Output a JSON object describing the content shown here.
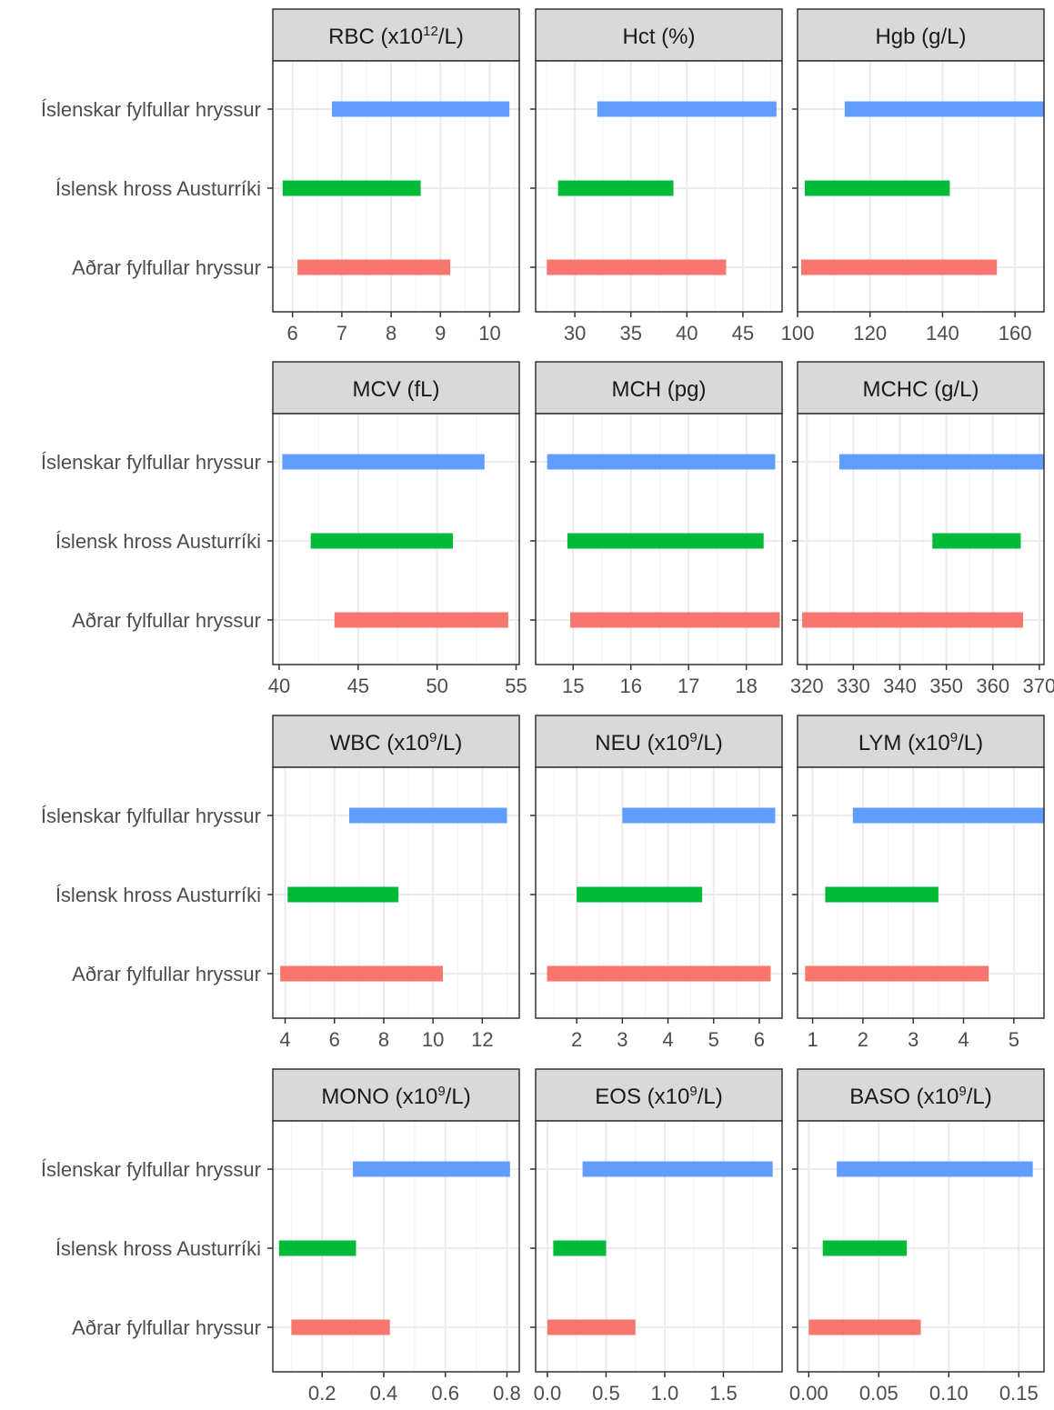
{
  "colors": {
    "islenskar": "#619CFF",
    "austurriki": "#00BA38",
    "adrar": "#F8766D",
    "strip_bg": "#D9D9D9",
    "panel_border": "#333333",
    "grid": "#EBEBEB"
  },
  "categories": [
    "Íslenskar fylfullar hryssur",
    "Íslensk hross Austurríki",
    "Aðrar fylfullar hryssur"
  ],
  "chart_data": [
    {
      "type": "bar",
      "orientation": "horizontal-range",
      "title": {
        "pre": "RBC (x10",
        "sup": "12",
        "post": "/L)"
      },
      "xlim": [
        5.6,
        10.6
      ],
      "ticks": [
        6,
        7,
        8,
        9,
        10
      ],
      "tick_labels": [
        "6",
        "7",
        "8",
        "9",
        "10"
      ],
      "series": [
        {
          "category": "Íslenskar fylfullar hryssur",
          "range": [
            6.8,
            10.4
          ]
        },
        {
          "category": "Íslensk hross Austurríki",
          "range": [
            5.8,
            8.6
          ]
        },
        {
          "category": "Aðrar fylfullar hryssur",
          "range": [
            6.1,
            9.2
          ]
        }
      ]
    },
    {
      "type": "bar",
      "orientation": "horizontal-range",
      "title": {
        "pre": "Hct (%)",
        "sup": "",
        "post": ""
      },
      "xlim": [
        26.5,
        48.5
      ],
      "ticks": [
        30,
        35,
        40,
        45
      ],
      "tick_labels": [
        "30",
        "35",
        "40",
        "45"
      ],
      "series": [
        {
          "category": "Íslenskar fylfullar hryssur",
          "range": [
            32,
            48
          ]
        },
        {
          "category": "Íslensk hross Austurríki",
          "range": [
            28.5,
            38.8
          ]
        },
        {
          "category": "Aðrar fylfullar hryssur",
          "range": [
            27.5,
            43.5
          ]
        }
      ]
    },
    {
      "type": "bar",
      "orientation": "horizontal-range",
      "title": {
        "pre": "Hgb (g/L)",
        "sup": "",
        "post": ""
      },
      "xlim": [
        100,
        168
      ],
      "ticks": [
        100,
        120,
        140,
        160
      ],
      "tick_labels": [
        "100",
        "120",
        "140",
        "160"
      ],
      "series": [
        {
          "category": "Íslenskar fylfullar hryssur",
          "range": [
            113,
            168
          ]
        },
        {
          "category": "Íslensk hross Austurríki",
          "range": [
            102,
            142
          ]
        },
        {
          "category": "Aðrar fylfullar hryssur",
          "range": [
            101,
            155
          ]
        }
      ]
    },
    {
      "type": "bar",
      "orientation": "horizontal-range",
      "title": {
        "pre": "MCV (fL)",
        "sup": "",
        "post": ""
      },
      "xlim": [
        39.6,
        55.2
      ],
      "ticks": [
        40,
        45,
        50,
        55
      ],
      "tick_labels": [
        "40",
        "45",
        "50",
        "55"
      ],
      "series": [
        {
          "category": "Íslenskar fylfullar hryssur",
          "range": [
            40.2,
            53
          ]
        },
        {
          "category": "Íslensk hross Austurríki",
          "range": [
            42,
            51
          ]
        },
        {
          "category": "Aðrar fylfullar hryssur",
          "range": [
            43.5,
            54.5
          ]
        }
      ]
    },
    {
      "type": "bar",
      "orientation": "horizontal-range",
      "title": {
        "pre": "MCH (pg)",
        "sup": "",
        "post": ""
      },
      "xlim": [
        14.35,
        18.62
      ],
      "ticks": [
        15,
        16,
        17,
        18
      ],
      "tick_labels": [
        "15",
        "16",
        "17",
        "18"
      ],
      "series": [
        {
          "category": "Íslenskar fylfullar hryssur",
          "range": [
            14.55,
            18.5
          ]
        },
        {
          "category": "Íslensk hross Austurríki",
          "range": [
            14.9,
            18.3
          ]
        },
        {
          "category": "Aðrar fylfullar hryssur",
          "range": [
            14.95,
            18.58
          ]
        }
      ]
    },
    {
      "type": "bar",
      "orientation": "horizontal-range",
      "title": {
        "pre": "MCHC (g/L)",
        "sup": "",
        "post": ""
      },
      "xlim": [
        318,
        371
      ],
      "ticks": [
        320,
        330,
        340,
        350,
        360,
        370
      ],
      "tick_labels": [
        "320",
        "330",
        "340",
        "350",
        "360",
        "370"
      ],
      "series": [
        {
          "category": "Íslenskar fylfullar hryssur",
          "range": [
            327,
            371
          ]
        },
        {
          "category": "Íslensk hross Austurríki",
          "range": [
            347,
            366
          ]
        },
        {
          "category": "Aðrar fylfullar hryssur",
          "range": [
            319,
            366.5
          ]
        }
      ]
    },
    {
      "type": "bar",
      "orientation": "horizontal-range",
      "title": {
        "pre": "WBC (x10",
        "sup": "9",
        "post": "/L)"
      },
      "xlim": [
        3.5,
        13.5
      ],
      "ticks": [
        4,
        6,
        8,
        10,
        12
      ],
      "tick_labels": [
        "4",
        "6",
        "8",
        "10",
        "12"
      ],
      "series": [
        {
          "category": "Íslenskar fylfullar hryssur",
          "range": [
            6.6,
            13
          ]
        },
        {
          "category": "Íslensk hross Austurríki",
          "range": [
            4.1,
            8.6
          ]
        },
        {
          "category": "Aðrar fylfullar hryssur",
          "range": [
            3.8,
            10.4
          ]
        }
      ]
    },
    {
      "type": "bar",
      "orientation": "horizontal-range",
      "title": {
        "pre": "NEU (x10",
        "sup": "9",
        "post": "/L)"
      },
      "xlim": [
        1.1,
        6.5
      ],
      "ticks": [
        2,
        3,
        4,
        5,
        6
      ],
      "tick_labels": [
        "2",
        "3",
        "4",
        "5",
        "6"
      ],
      "series": [
        {
          "category": "Íslenskar fylfullar hryssur",
          "range": [
            3,
            6.35
          ]
        },
        {
          "category": "Íslensk hross Austurríki",
          "range": [
            2,
            4.75
          ]
        },
        {
          "category": "Aðrar fylfullar hryssur",
          "range": [
            1.35,
            6.25
          ]
        }
      ]
    },
    {
      "type": "bar",
      "orientation": "horizontal-range",
      "title": {
        "pre": "LYM (x10",
        "sup": "9",
        "post": "/L)"
      },
      "xlim": [
        0.7,
        5.6
      ],
      "ticks": [
        1,
        2,
        3,
        4,
        5
      ],
      "tick_labels": [
        "1",
        "2",
        "3",
        "4",
        "5"
      ],
      "series": [
        {
          "category": "Íslenskar fylfullar hryssur",
          "range": [
            1.8,
            5.6
          ]
        },
        {
          "category": "Íslensk hross Austurríki",
          "range": [
            1.25,
            3.5
          ]
        },
        {
          "category": "Aðrar fylfullar hryssur",
          "range": [
            0.85,
            4.5
          ]
        }
      ]
    },
    {
      "type": "bar",
      "orientation": "horizontal-range",
      "title": {
        "pre": "MONO (x10",
        "sup": "9",
        "post": "/L)"
      },
      "xlim": [
        0.04,
        0.84
      ],
      "ticks": [
        0.2,
        0.4,
        0.6,
        0.8
      ],
      "tick_labels": [
        "0.2",
        "0.4",
        "0.6",
        "0.8"
      ],
      "series": [
        {
          "category": "Íslenskar fylfullar hryssur",
          "range": [
            0.3,
            0.81
          ]
        },
        {
          "category": "Íslensk hross Austurríki",
          "range": [
            0.06,
            0.31
          ]
        },
        {
          "category": "Aðrar fylfullar hryssur",
          "range": [
            0.1,
            0.42
          ]
        }
      ]
    },
    {
      "type": "bar",
      "orientation": "horizontal-range",
      "title": {
        "pre": "EOS (x10",
        "sup": "9",
        "post": "/L)"
      },
      "xlim": [
        -0.1,
        2.0
      ],
      "ticks": [
        0,
        0.5,
        1,
        1.5
      ],
      "tick_labels": [
        "0.0",
        "0.5",
        "1.0",
        "1.5"
      ],
      "series": [
        {
          "category": "Íslenskar fylfullar hryssur",
          "range": [
            0.3,
            1.92
          ]
        },
        {
          "category": "Íslensk hross Austurríki",
          "range": [
            0.05,
            0.5
          ]
        },
        {
          "category": "Aðrar fylfullar hryssur",
          "range": [
            0,
            0.75
          ]
        }
      ]
    },
    {
      "type": "bar",
      "orientation": "horizontal-range",
      "title": {
        "pre": "BASO (x10",
        "sup": "9",
        "post": "/L)"
      },
      "xlim": [
        -0.008,
        0.168
      ],
      "ticks": [
        0,
        0.05,
        0.1,
        0.15
      ],
      "tick_labels": [
        "0.00",
        "0.05",
        "0.10",
        "0.15"
      ],
      "series": [
        {
          "category": "Íslenskar fylfullar hryssur",
          "range": [
            0.02,
            0.16
          ]
        },
        {
          "category": "Íslensk hross Austurríki",
          "range": [
            0.01,
            0.07
          ]
        },
        {
          "category": "Aðrar fylfullar hryssur",
          "range": [
            0,
            0.08
          ]
        }
      ]
    }
  ]
}
